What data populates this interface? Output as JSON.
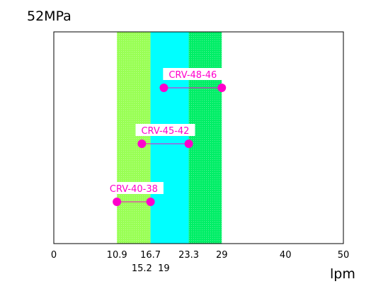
{
  "chart_data": {
    "type": "range",
    "title": "52MPa",
    "xlabel": "lpm",
    "xlim": [
      0,
      50
    ],
    "ticks_row1": [
      "0",
      "10.9",
      "16.7",
      "23.3",
      "29",
      "40",
      "50"
    ],
    "ticks_row1_values": [
      0,
      10.9,
      16.7,
      23.3,
      29,
      40,
      50
    ],
    "ticks_row2": [
      "15.2",
      "19"
    ],
    "ticks_row2_values": [
      15.2,
      19
    ],
    "bands": [
      {
        "x0": 10.9,
        "x1": 16.7,
        "color": "#99ff55",
        "hatched": true
      },
      {
        "x0": 16.7,
        "x1": 23.3,
        "color": "#00ffff",
        "hatched": false
      },
      {
        "x0": 23.3,
        "x1": 29,
        "color": "#00ee66",
        "hatched": true
      }
    ],
    "series": [
      {
        "name": "CRV-48-46",
        "min": 19,
        "max": 29
      },
      {
        "name": "CRV-45-42",
        "min": 15.2,
        "max": 23.3
      },
      {
        "name": "CRV-40-38",
        "min": 10.9,
        "max": 16.7
      }
    ],
    "marker_color": "#ff00cc",
    "grid": false
  }
}
